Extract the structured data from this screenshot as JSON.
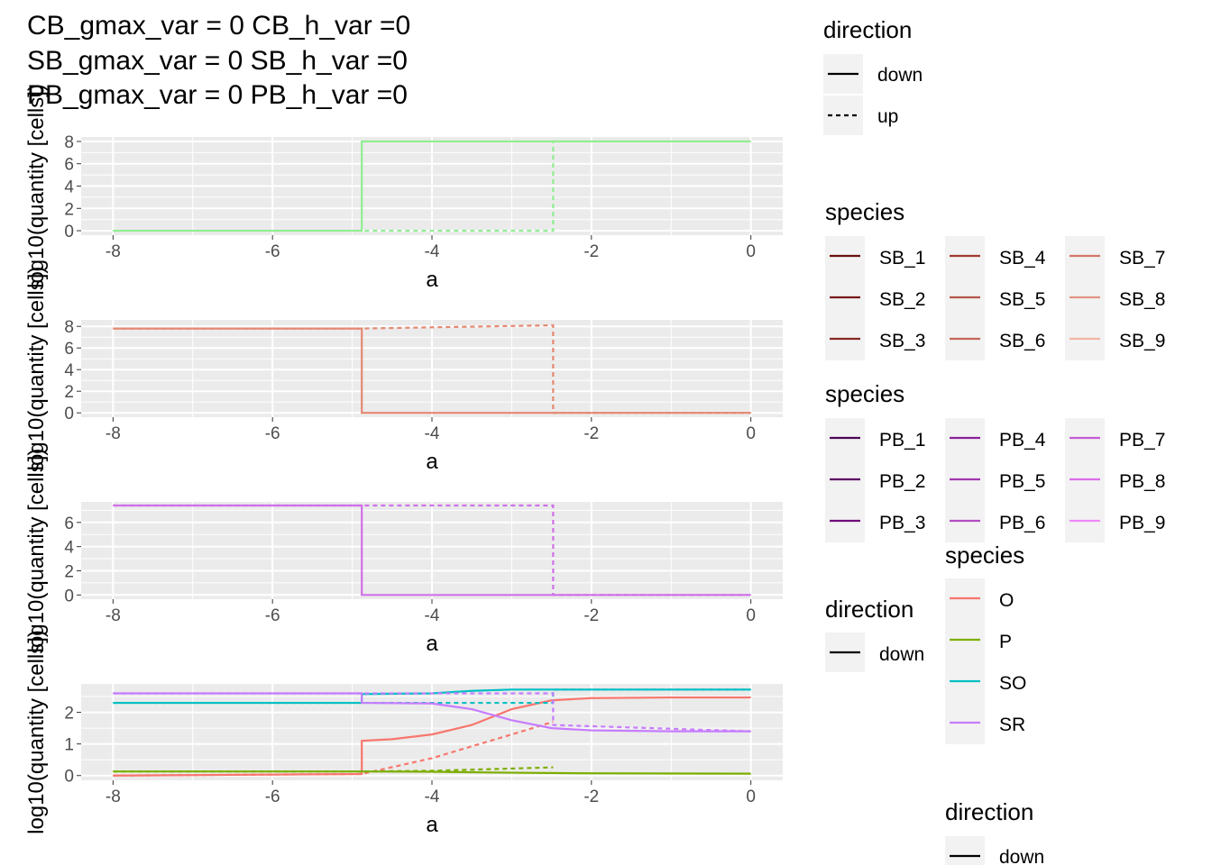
{
  "title_lines": [
    "CB_gmax_var = 0 CB_h_var =0",
    "SB_gmax_var = 0 SB_h_var =0",
    "PB_gmax_var = 0 PB_h_var =0"
  ],
  "chart_data": [
    {
      "type": "line",
      "xlabel": "a",
      "ylabel": "log10(quantity [cells])",
      "xlim": [
        -8.4,
        0.4
      ],
      "ylim": [
        -0.4,
        8.4
      ],
      "xticks": [
        -8,
        -6,
        -4,
        -2,
        0
      ],
      "yticks": [
        0,
        2,
        4,
        6,
        8
      ],
      "grid": true,
      "series": [
        {
          "direction": "down",
          "color": "#90EE90",
          "dashed": false,
          "x": [
            -8,
            -4.88,
            -4.88,
            0
          ],
          "y": [
            0,
            0,
            8,
            8
          ]
        },
        {
          "direction": "up",
          "color": "#90EE90",
          "dashed": true,
          "x": [
            -8,
            -2.48,
            -2.48,
            0
          ],
          "y": [
            0,
            0,
            8,
            8
          ]
        }
      ]
    },
    {
      "type": "line",
      "xlabel": "a",
      "ylabel": "log10(quantity [cells])",
      "xlim": [
        -8.4,
        0.4
      ],
      "ylim": [
        -0.4,
        8.6
      ],
      "xticks": [
        -8,
        -6,
        -4,
        -2,
        0
      ],
      "yticks": [
        0,
        2,
        4,
        6,
        8
      ],
      "grid": true,
      "series": [
        {
          "direction": "down",
          "color": "#E58872",
          "dashed": false,
          "x": [
            -8,
            -4.88,
            -4.88,
            0
          ],
          "y": [
            7.8,
            7.8,
            0,
            0
          ]
        },
        {
          "direction": "up",
          "color": "#E58872",
          "dashed": true,
          "x": [
            -8,
            -4.88,
            -2.48,
            -2.48,
            0
          ],
          "y": [
            7.8,
            7.8,
            8.1,
            0,
            0
          ]
        }
      ]
    },
    {
      "type": "line",
      "xlabel": "a",
      "ylabel": "log10(quantity [cells])",
      "xlim": [
        -8.4,
        0.4
      ],
      "ylim": [
        -0.35,
        7.7
      ],
      "xticks": [
        -8,
        -6,
        -4,
        -2,
        0
      ],
      "yticks": [
        0,
        2,
        4,
        6
      ],
      "grid": true,
      "series": [
        {
          "direction": "down",
          "color": "#D070E8",
          "dashed": false,
          "x": [
            -8,
            -4.88,
            -4.88,
            0
          ],
          "y": [
            7.4,
            7.4,
            0,
            0
          ]
        },
        {
          "direction": "up",
          "color": "#D070E8",
          "dashed": true,
          "x": [
            -8,
            -2.48,
            -2.48,
            0
          ],
          "y": [
            7.4,
            7.4,
            0,
            0
          ]
        }
      ]
    },
    {
      "type": "line",
      "xlabel": "a",
      "ylabel": "log10(quantity [cells])",
      "xlim": [
        -8.4,
        0.4
      ],
      "ylim": [
        -0.15,
        2.9
      ],
      "xticks": [
        -8,
        -6,
        -4,
        -2,
        0
      ],
      "yticks": [
        0,
        1,
        2
      ],
      "grid": true,
      "series": [
        {
          "species": "O",
          "direction": "down",
          "color": "#F8766D",
          "dashed": false,
          "x": [
            -8,
            -4.88,
            -4.88,
            -4.5,
            -4,
            -3.5,
            -3,
            -2.5,
            -2,
            -1,
            0
          ],
          "y": [
            0,
            0.05,
            1.1,
            1.15,
            1.3,
            1.6,
            2.1,
            2.38,
            2.45,
            2.47,
            2.47
          ]
        },
        {
          "species": "O",
          "direction": "up",
          "color": "#F8766D",
          "dashed": true,
          "x": [
            -8,
            -4.88,
            -4,
            -3,
            -2.48
          ],
          "y": [
            0,
            0.05,
            0.55,
            1.3,
            1.7
          ]
        },
        {
          "species": "P",
          "direction": "down",
          "color": "#7CAE00",
          "dashed": false,
          "x": [
            -8,
            -4.88,
            -4,
            -3,
            -2,
            0
          ],
          "y": [
            0.13,
            0.13,
            0.12,
            0.09,
            0.07,
            0.06
          ]
        },
        {
          "species": "P",
          "direction": "up",
          "color": "#7CAE00",
          "dashed": true,
          "x": [
            -8,
            -4.88,
            -4,
            -2.48
          ],
          "y": [
            0.13,
            0.13,
            0.15,
            0.26
          ]
        },
        {
          "species": "SO",
          "direction": "down",
          "color": "#00BFC4",
          "dashed": false,
          "x": [
            -8,
            -4.88,
            -4.88,
            -4,
            -3.5,
            -3,
            -2,
            0
          ],
          "y": [
            2.3,
            2.3,
            2.58,
            2.6,
            2.68,
            2.72,
            2.72,
            2.72
          ]
        },
        {
          "species": "SO",
          "direction": "up",
          "color": "#00BFC4",
          "dashed": true,
          "x": [
            -8,
            -2.48,
            -2.48,
            0
          ],
          "y": [
            2.3,
            2.3,
            2.72,
            2.72
          ]
        },
        {
          "species": "SR",
          "direction": "down",
          "color": "#C77CFF",
          "dashed": false,
          "x": [
            -8,
            -4.88,
            -4.88,
            -4,
            -3.5,
            -3,
            -2.5,
            -2,
            -1,
            0
          ],
          "y": [
            2.6,
            2.6,
            2.3,
            2.28,
            2.1,
            1.75,
            1.5,
            1.43,
            1.4,
            1.4
          ]
        },
        {
          "species": "SR",
          "direction": "up",
          "color": "#C77CFF",
          "dashed": true,
          "x": [
            -8,
            -2.48,
            -2.48,
            0
          ],
          "y": [
            2.6,
            2.6,
            1.6,
            1.4
          ]
        }
      ]
    }
  ],
  "legends": [
    {
      "title": "direction",
      "items": [
        {
          "label": "down",
          "dashed": false
        },
        {
          "label": "up",
          "dashed": true
        }
      ]
    },
    {
      "title": "species",
      "columns": [
        [
          {
            "label": "SB_1",
            "color": "#6B0F0F"
          },
          {
            "label": "SB_2",
            "color": "#781818"
          },
          {
            "label": "SB_3",
            "color": "#862A24"
          }
        ],
        [
          {
            "label": "SB_4",
            "color": "#A13A30"
          },
          {
            "label": "SB_5",
            "color": "#B5554A"
          },
          {
            "label": "SB_6",
            "color": "#C5665A"
          }
        ],
        [
          {
            "label": "SB_7",
            "color": "#D57668"
          },
          {
            "label": "SB_8",
            "color": "#E39486"
          },
          {
            "label": "SB_9",
            "color": "#F3B4A6"
          }
        ]
      ]
    },
    {
      "title": "species",
      "columns": [
        [
          {
            "label": "PB_1",
            "color": "#4B0455"
          },
          {
            "label": "PB_2",
            "color": "#5C0866"
          },
          {
            "label": "PB_3",
            "color": "#6E0C78"
          }
        ],
        [
          {
            "label": "PB_4",
            "color": "#8A2098"
          },
          {
            "label": "PB_5",
            "color": "#A038AE"
          },
          {
            "label": "PB_6",
            "color": "#B24CC0"
          }
        ],
        [
          {
            "label": "PB_7",
            "color": "#C45CD6"
          },
          {
            "label": "PB_8",
            "color": "#DA6EE8"
          },
          {
            "label": "PB_9",
            "color": "#EE8AF6"
          }
        ]
      ]
    },
    {
      "title": "direction",
      "items": [
        {
          "label": "down",
          "dashed": false
        }
      ]
    },
    {
      "title": "species",
      "items": [
        {
          "label": "O",
          "color": "#F8766D"
        },
        {
          "label": "P",
          "color": "#7CAE00"
        },
        {
          "label": "SO",
          "color": "#00BFC4"
        },
        {
          "label": "SR",
          "color": "#C77CFF"
        }
      ]
    },
    {
      "title": "direction",
      "items": [
        {
          "label": "down",
          "dashed": false
        }
      ]
    }
  ]
}
